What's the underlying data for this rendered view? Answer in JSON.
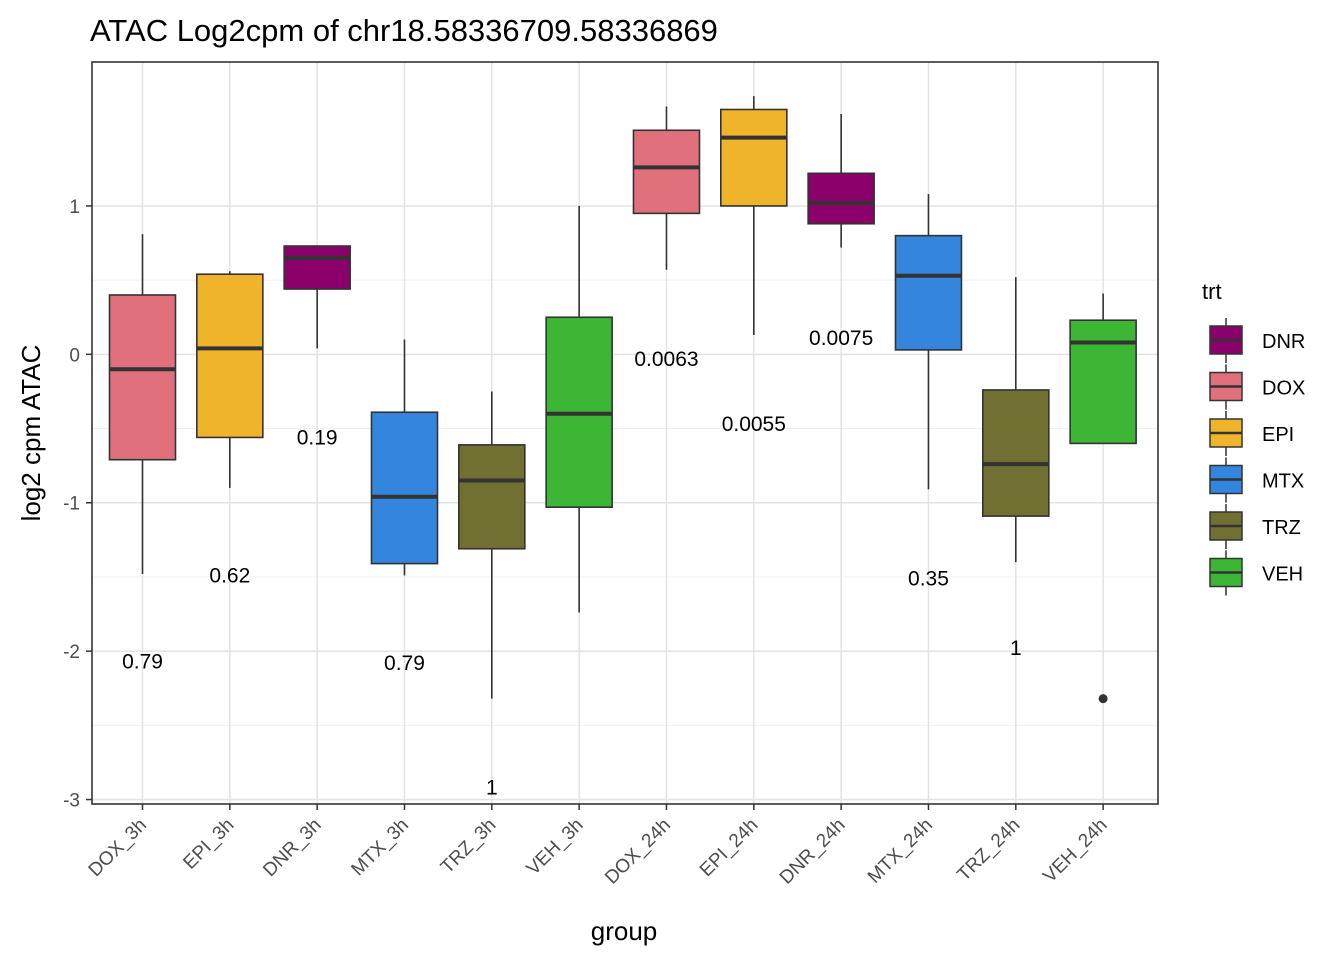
{
  "chart_data": {
    "type": "box",
    "title": "ATAC Log2cpm of chr18.58336709.58336869",
    "xlabel": "group",
    "ylabel": "log2 cpm ATAC",
    "ylim": [
      -3.03,
      1.97
    ],
    "y_ticks": [
      1,
      0,
      -1,
      -2,
      -3
    ],
    "grid": true,
    "legend": {
      "title": "trt",
      "position": "right",
      "entries": [
        {
          "label": "DNR",
          "color": "#8B006B"
        },
        {
          "label": "DOX",
          "color": "#E0707C"
        },
        {
          "label": "EPI",
          "color": "#F0B42B"
        },
        {
          "label": "MTX",
          "color": "#3385DE"
        },
        {
          "label": "TRZ",
          "color": "#707032"
        },
        {
          "label": "VEH",
          "color": "#3CB634"
        }
      ]
    },
    "categories": [
      "DOX_3h",
      "EPI_3h",
      "DNR_3h",
      "MTX_3h",
      "TRZ_3h",
      "VEH_3h",
      "DOX_24h",
      "EPI_24h",
      "DNR_24h",
      "MTX_24h",
      "TRZ_24h",
      "VEH_24h"
    ],
    "boxes": [
      {
        "group": "DOX_3h",
        "trt": "DOX",
        "min": -1.48,
        "q1": -0.71,
        "median": -0.1,
        "q3": 0.4,
        "max": 0.81,
        "outliers": []
      },
      {
        "group": "EPI_3h",
        "trt": "EPI",
        "min": -0.9,
        "q1": -0.56,
        "median": 0.04,
        "q3": 0.54,
        "max": 0.56,
        "outliers": []
      },
      {
        "group": "DNR_3h",
        "trt": "DNR",
        "min": 0.04,
        "q1": 0.44,
        "median": 0.65,
        "q3": 0.73,
        "max": 0.73,
        "outliers": []
      },
      {
        "group": "MTX_3h",
        "trt": "MTX",
        "min": -1.49,
        "q1": -1.41,
        "median": -0.96,
        "q3": -0.39,
        "max": 0.1,
        "outliers": []
      },
      {
        "group": "TRZ_3h",
        "trt": "TRZ",
        "min": -2.32,
        "q1": -1.31,
        "median": -0.85,
        "q3": -0.61,
        "max": -0.25,
        "outliers": []
      },
      {
        "group": "VEH_3h",
        "trt": "VEH",
        "min": -1.74,
        "q1": -1.03,
        "median": -0.4,
        "q3": 0.25,
        "max": 1.0,
        "outliers": []
      },
      {
        "group": "DOX_24h",
        "trt": "DOX",
        "min": 0.57,
        "q1": 0.95,
        "median": 1.26,
        "q3": 1.51,
        "max": 1.67,
        "outliers": []
      },
      {
        "group": "EPI_24h",
        "trt": "EPI",
        "min": 0.13,
        "q1": 1.0,
        "median": 1.46,
        "q3": 1.65,
        "max": 1.74,
        "outliers": []
      },
      {
        "group": "DNR_24h",
        "trt": "DNR",
        "min": 0.72,
        "q1": 0.88,
        "median": 1.02,
        "q3": 1.22,
        "max": 1.62,
        "outliers": []
      },
      {
        "group": "MTX_24h",
        "trt": "MTX",
        "min": -0.91,
        "q1": 0.03,
        "median": 0.53,
        "q3": 0.8,
        "max": 1.08,
        "outliers": []
      },
      {
        "group": "TRZ_24h",
        "trt": "TRZ",
        "min": -1.4,
        "q1": -1.09,
        "median": -0.74,
        "q3": -0.24,
        "max": 0.52,
        "outliers": []
      },
      {
        "group": "VEH_24h",
        "trt": "VEH",
        "min": -0.6,
        "q1": -0.6,
        "median": 0.08,
        "q3": 0.23,
        "max": 0.41,
        "outliers": [
          -2.32
        ]
      }
    ],
    "annotations": [
      {
        "group": "DOX_3h",
        "text": "0.79",
        "y": -2.07
      },
      {
        "group": "EPI_3h",
        "text": "0.62",
        "y": -1.49
      },
      {
        "group": "DNR_3h",
        "text": "0.19",
        "y": -0.56
      },
      {
        "group": "MTX_3h",
        "text": "0.79",
        "y": -2.08
      },
      {
        "group": "TRZ_3h",
        "text": "1",
        "y": -2.92
      },
      {
        "group": "DOX_24h",
        "text": "0.0063",
        "y": -0.03
      },
      {
        "group": "EPI_24h",
        "text": "0.0055",
        "y": -0.47
      },
      {
        "group": "DNR_24h",
        "text": "0.0075",
        "y": 0.11
      },
      {
        "group": "MTX_24h",
        "text": "0.35",
        "y": -1.51
      },
      {
        "group": "TRZ_24h",
        "text": "1",
        "y": -1.98
      }
    ]
  }
}
